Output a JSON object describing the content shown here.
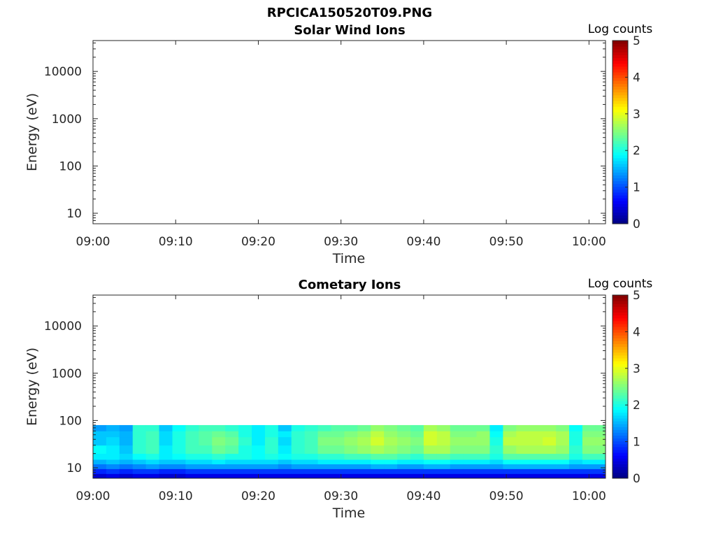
{
  "page": {
    "title": "RPCICA150520T09.PNG"
  },
  "chart_data": [
    {
      "type": "heatmap",
      "title": "Solar Wind Ions",
      "xlabel": "Time",
      "ylabel": "Energy (eV)",
      "x_ticks": [
        "09:00",
        "09:10",
        "09:20",
        "09:30",
        "09:40",
        "09:50",
        "10:00"
      ],
      "x_range_minutes": [
        0,
        62
      ],
      "y_scale": "log",
      "y_ticks": [
        "10",
        "100",
        "1000",
        "10000"
      ],
      "y_range": [
        6,
        45000
      ],
      "colorbar": {
        "label": "Log counts",
        "ticks": [
          "0",
          "1",
          "2",
          "3",
          "4",
          "5"
        ],
        "range": [
          0,
          5
        ],
        "colormap": "jet"
      },
      "cells": []
    },
    {
      "type": "heatmap",
      "title": "Cometary Ions",
      "xlabel": "Time",
      "ylabel": "Energy (eV)",
      "x_ticks": [
        "09:00",
        "09:10",
        "09:20",
        "09:30",
        "09:40",
        "09:50",
        "10:00"
      ],
      "x_range_minutes": [
        0,
        62
      ],
      "y_scale": "log",
      "y_ticks": [
        "10",
        "100",
        "1000",
        "10000"
      ],
      "y_range": [
        6,
        45000
      ],
      "colorbar": {
        "label": "Log counts",
        "ticks": [
          "0",
          "1",
          "2",
          "3",
          "4",
          "5"
        ],
        "range": [
          0,
          5
        ],
        "colormap": "jet"
      },
      "energy_bins_eV": [
        6,
        7.5,
        9.5,
        12,
        15,
        20,
        30,
        45,
        60,
        80
      ],
      "time_bins_minutes": [
        0,
        1.6,
        3.2,
        4.8,
        6.4,
        8.0,
        9.6,
        11.2,
        12.8,
        14.4,
        16.0,
        17.6,
        19.2,
        20.8,
        22.4,
        24.0,
        25.6,
        27.2,
        28.8,
        30.4,
        32.0,
        33.6,
        35.2,
        36.8,
        38.4,
        40.0,
        41.6,
        43.2,
        44.8,
        46.4,
        48.0,
        49.6,
        51.2,
        52.8,
        54.4,
        56.0,
        57.6,
        59.2,
        60.8,
        62.0
      ],
      "values": [
        [
          0.4,
          0.8,
          1.2,
          1.5,
          1.8,
          1.9,
          1.6,
          1.6,
          1.4
        ],
        [
          0.5,
          0.9,
          1.3,
          1.6,
          1.8,
          1.8,
          1.7,
          1.6,
          1.5
        ],
        [
          0.4,
          0.8,
          1.2,
          1.5,
          1.7,
          1.6,
          1.5,
          1.5,
          1.4
        ],
        [
          0.5,
          0.9,
          1.3,
          1.6,
          1.9,
          2.1,
          2.1,
          2.1,
          2.1
        ],
        [
          0.5,
          0.9,
          1.4,
          1.7,
          2.0,
          2.2,
          2.2,
          2.2,
          2.1
        ],
        [
          0.4,
          0.8,
          1.3,
          1.6,
          1.8,
          1.8,
          1.7,
          1.7,
          1.6
        ],
        [
          0.4,
          0.8,
          1.3,
          1.6,
          1.9,
          2.0,
          2.0,
          2.0,
          1.9
        ],
        [
          0.5,
          0.9,
          1.4,
          1.7,
          2.0,
          2.2,
          2.2,
          2.2,
          2.1
        ],
        [
          0.5,
          0.9,
          1.4,
          1.7,
          2.0,
          2.2,
          2.3,
          2.3,
          2.2
        ],
        [
          0.5,
          0.9,
          1.4,
          1.8,
          2.1,
          2.4,
          2.5,
          2.4,
          2.2
        ],
        [
          0.5,
          0.9,
          1.4,
          1.7,
          2.0,
          2.3,
          2.4,
          2.3,
          2.1
        ],
        [
          0.5,
          0.9,
          1.4,
          1.7,
          2.0,
          2.0,
          2.1,
          2.0,
          2.0
        ],
        [
          0.5,
          0.9,
          1.4,
          1.7,
          1.9,
          1.9,
          1.8,
          1.8,
          1.8
        ],
        [
          0.5,
          0.9,
          1.4,
          1.7,
          2.0,
          2.1,
          2.1,
          2.0,
          2.0
        ],
        [
          0.5,
          0.9,
          1.3,
          1.6,
          1.9,
          1.8,
          1.7,
          1.8,
          1.6
        ],
        [
          0.5,
          0.9,
          1.4,
          1.7,
          2.0,
          2.1,
          2.1,
          2.1,
          2.0
        ],
        [
          0.5,
          0.9,
          1.4,
          1.7,
          2.0,
          2.2,
          2.2,
          2.2,
          2.1
        ],
        [
          0.5,
          0.9,
          1.4,
          1.8,
          2.1,
          2.4,
          2.5,
          2.4,
          2.2
        ],
        [
          0.5,
          0.9,
          1.4,
          1.8,
          2.1,
          2.4,
          2.5,
          2.4,
          2.3
        ],
        [
          0.5,
          0.9,
          1.4,
          1.8,
          2.2,
          2.5,
          2.6,
          2.5,
          2.3
        ],
        [
          0.5,
          0.9,
          1.4,
          1.8,
          2.2,
          2.6,
          2.7,
          2.6,
          2.4
        ],
        [
          0.5,
          0.9,
          1.5,
          1.9,
          2.3,
          2.7,
          2.9,
          2.8,
          2.6
        ],
        [
          0.5,
          0.9,
          1.5,
          1.9,
          2.3,
          2.6,
          2.7,
          2.6,
          2.5
        ],
        [
          0.5,
          0.9,
          1.4,
          1.8,
          2.2,
          2.5,
          2.6,
          2.5,
          2.4
        ],
        [
          0.5,
          0.9,
          1.4,
          1.8,
          2.1,
          2.4,
          2.5,
          2.4,
          2.3
        ],
        [
          0.5,
          0.9,
          1.5,
          1.9,
          2.3,
          2.7,
          2.9,
          2.9,
          2.7
        ],
        [
          0.5,
          0.9,
          1.5,
          1.9,
          2.3,
          2.7,
          2.8,
          2.8,
          2.6
        ],
        [
          0.5,
          0.9,
          1.4,
          1.8,
          2.2,
          2.5,
          2.6,
          2.5,
          2.4
        ],
        [
          0.5,
          0.9,
          1.4,
          1.8,
          2.2,
          2.5,
          2.6,
          2.5,
          2.4
        ],
        [
          0.5,
          0.9,
          1.4,
          1.8,
          2.2,
          2.5,
          2.6,
          2.6,
          2.4
        ],
        [
          0.5,
          0.9,
          1.4,
          1.7,
          2.0,
          2.1,
          2.0,
          1.9,
          1.8
        ],
        [
          0.5,
          0.9,
          1.5,
          1.9,
          2.3,
          2.6,
          2.8,
          2.7,
          2.5
        ],
        [
          0.5,
          0.9,
          1.5,
          1.9,
          2.3,
          2.7,
          2.8,
          2.8,
          2.6
        ],
        [
          0.5,
          0.9,
          1.5,
          1.9,
          2.3,
          2.7,
          2.8,
          2.8,
          2.6
        ],
        [
          0.5,
          0.9,
          1.5,
          1.9,
          2.3,
          2.7,
          2.9,
          2.8,
          2.6
        ],
        [
          0.5,
          0.9,
          1.5,
          1.9,
          2.3,
          2.6,
          2.7,
          2.7,
          2.5
        ],
        [
          0.5,
          0.9,
          1.4,
          1.7,
          2.0,
          2.1,
          2.0,
          2.0,
          1.9
        ],
        [
          0.5,
          0.9,
          1.4,
          1.8,
          2.2,
          2.5,
          2.6,
          2.5,
          2.4
        ],
        [
          0.5,
          0.9,
          1.4,
          1.8,
          2.2,
          2.5,
          2.6,
          2.5,
          2.4
        ]
      ]
    }
  ]
}
